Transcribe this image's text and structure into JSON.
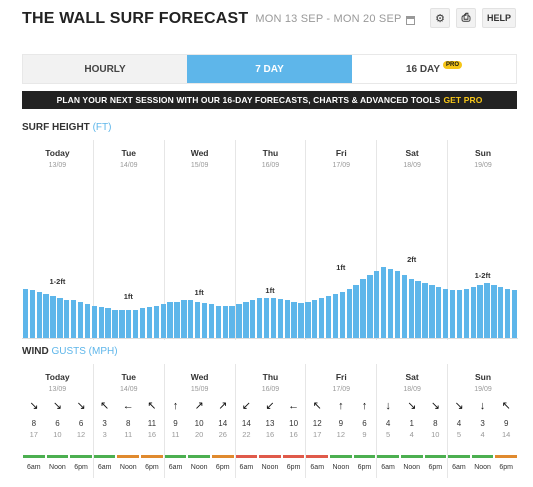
{
  "header": {
    "title": "THE WALL SURF FORECAST",
    "date_range": "MON 13 SEP - MON 20 SEP",
    "help_label": "HELP"
  },
  "tabs": [
    {
      "label": "HOURLY",
      "active": false
    },
    {
      "label": "7 DAY",
      "active": true
    },
    {
      "label": "16 DAY",
      "badge": "PRO",
      "active": false
    }
  ],
  "banner": {
    "text": "PLAN YOUR NEXT SESSION WITH OUR 16-DAY FORECASTS, CHARTS & ADVANCED TOOLS",
    "cta": "GET PRO"
  },
  "surf": {
    "label": "SURF HEIGHT",
    "unit": "(FT)",
    "days": [
      {
        "name": "Today",
        "date": "13/09",
        "height": "1-2ft"
      },
      {
        "name": "Tue",
        "date": "14/09",
        "height": "1ft"
      },
      {
        "name": "Wed",
        "date": "15/09",
        "height": "1ft"
      },
      {
        "name": "Thu",
        "date": "16/09",
        "height": "1ft"
      },
      {
        "name": "Fri",
        "date": "17/09",
        "height": "1ft"
      },
      {
        "name": "Sat",
        "date": "18/09",
        "height": "2ft"
      },
      {
        "name": "Sun",
        "date": "19/09",
        "height": "1-2ft"
      }
    ],
    "bar_values_ft": [
      1.25,
      1.2,
      1.15,
      1.1,
      1.05,
      1.0,
      0.95,
      0.95,
      0.9,
      0.85,
      0.8,
      0.78,
      0.75,
      0.72,
      0.7,
      0.7,
      0.72,
      0.75,
      0.78,
      0.8,
      0.85,
      0.9,
      0.92,
      0.95,
      0.95,
      0.92,
      0.88,
      0.85,
      0.82,
      0.8,
      0.82,
      0.85,
      0.9,
      0.95,
      1.0,
      1.0,
      1.0,
      0.98,
      0.95,
      0.9,
      0.88,
      0.9,
      0.95,
      1.0,
      1.05,
      1.1,
      1.15,
      1.25,
      1.35,
      1.5,
      1.6,
      1.7,
      1.8,
      1.75,
      1.7,
      1.6,
      1.5,
      1.45,
      1.4,
      1.35,
      1.3,
      1.25,
      1.2,
      1.2,
      1.25,
      1.3,
      1.35,
      1.4,
      1.35,
      1.3,
      1.25,
      1.2
    ],
    "ylim": [
      0,
      8
    ]
  },
  "wind": {
    "label": "WIND",
    "unit_label": "GUSTS (MPH)",
    "days": [
      {
        "name": "Today",
        "date": "13/09"
      },
      {
        "name": "Tue",
        "date": "14/09"
      },
      {
        "name": "Wed",
        "date": "15/09"
      },
      {
        "name": "Thu",
        "date": "16/09"
      },
      {
        "name": "Fri",
        "date": "17/09"
      },
      {
        "name": "Sat",
        "date": "18/09"
      },
      {
        "name": "Sun",
        "date": "19/09"
      }
    ],
    "times": [
      "6am",
      "Noon",
      "6pm"
    ],
    "cells": [
      {
        "arrow": "↘",
        "speed": "8",
        "gust": "17",
        "color": "#4caf50"
      },
      {
        "arrow": "↘",
        "speed": "6",
        "gust": "10",
        "color": "#4caf50"
      },
      {
        "arrow": "↘",
        "speed": "6",
        "gust": "12",
        "color": "#4caf50"
      },
      {
        "arrow": "↖",
        "speed": "3",
        "gust": "3",
        "color": "#4caf50"
      },
      {
        "arrow": "←",
        "speed": "8",
        "gust": "11",
        "color": "#e08a2e"
      },
      {
        "arrow": "↖",
        "speed": "11",
        "gust": "16",
        "color": "#e08a2e"
      },
      {
        "arrow": "↑",
        "speed": "9",
        "gust": "11",
        "color": "#4caf50"
      },
      {
        "arrow": "↗",
        "speed": "10",
        "gust": "20",
        "color": "#4caf50"
      },
      {
        "arrow": "↗",
        "speed": "14",
        "gust": "26",
        "color": "#e08a2e"
      },
      {
        "arrow": "↙",
        "speed": "14",
        "gust": "22",
        "color": "#e05a4a"
      },
      {
        "arrow": "↙",
        "speed": "13",
        "gust": "16",
        "color": "#e05a4a"
      },
      {
        "arrow": "←",
        "speed": "10",
        "gust": "16",
        "color": "#e05a4a"
      },
      {
        "arrow": "↖",
        "speed": "12",
        "gust": "17",
        "color": "#e05a4a"
      },
      {
        "arrow": "↑",
        "speed": "9",
        "gust": "12",
        "color": "#4caf50"
      },
      {
        "arrow": "↑",
        "speed": "6",
        "gust": "9",
        "color": "#4caf50"
      },
      {
        "arrow": "↓",
        "speed": "4",
        "gust": "5",
        "color": "#4caf50"
      },
      {
        "arrow": "↘",
        "speed": "1",
        "gust": "4",
        "color": "#4caf50"
      },
      {
        "arrow": "↘",
        "speed": "8",
        "gust": "10",
        "color": "#4caf50"
      },
      {
        "arrow": "↘",
        "speed": "4",
        "gust": "5",
        "color": "#4caf50"
      },
      {
        "arrow": "↓",
        "speed": "3",
        "gust": "4",
        "color": "#4caf50"
      },
      {
        "arrow": "↖",
        "speed": "9",
        "gust": "14",
        "color": "#e08a2e"
      }
    ]
  }
}
